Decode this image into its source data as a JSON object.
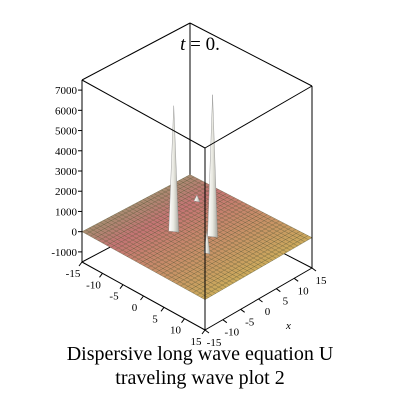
{
  "figure": {
    "caption_line1": "Dispersive long wave equation U",
    "caption_line2": "traveling wave plot 2"
  },
  "chart_data": {
    "type": "surface3d",
    "title": "t = 0.",
    "title_italic_part": "t",
    "title_rest": " = 0.",
    "xlabel": "x",
    "ylabel": "",
    "zlabel": "",
    "x_ticks": [
      -15,
      -10,
      -5,
      0,
      5,
      10,
      15
    ],
    "y_ticks": [
      -15,
      -10,
      -5,
      0,
      5,
      10,
      15
    ],
    "z_ticks": [
      -1000,
      0,
      1000,
      2000,
      3000,
      4000,
      5000,
      6000,
      7000
    ],
    "x_ticks_labeled": [
      "-15",
      "-10",
      "-5",
      "0",
      "5",
      "10",
      "15"
    ],
    "y_ticks_labeled": [
      "-15",
      "-10",
      "-5",
      "0",
      "5",
      "10",
      "15"
    ],
    "z_ticks_labeled": [
      "-1000",
      "0",
      "1000",
      "2000",
      "3000",
      "4000",
      "5000",
      "6000",
      "7000"
    ],
    "xlim": [
      -15,
      15
    ],
    "ylim": [
      -15,
      15
    ],
    "zlim": [
      -1500,
      7500
    ],
    "surface_base_value": 0,
    "spikes": [
      {
        "x": -2,
        "y": -2,
        "z": 7000
      },
      {
        "x": 2,
        "y": 4,
        "z": 6200
      },
      {
        "x": 3,
        "y": -5,
        "z": 1100
      },
      {
        "x": -9,
        "y": 8,
        "z": 300
      }
    ],
    "colors": {
      "surface_low": "#d9d24a",
      "surface_mid": "#c98a5e",
      "surface_high": "#b5a9b8",
      "surface_left": "#6fb86a",
      "mesh": "#5a5a3a",
      "spike": "#f2f2ee",
      "box": "#000000"
    },
    "grid": true,
    "legend": "none"
  }
}
